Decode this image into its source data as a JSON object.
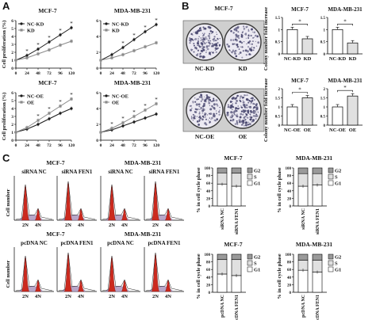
{
  "panels": {
    "A": "A",
    "B": "B",
    "C": "C"
  },
  "colors": {
    "line_dark": "#1a1a1a",
    "line_light": "#8a8a8a",
    "bar_white": "#ffffff",
    "bar_light": "#e0e0e0",
    "bar_dark": "#9a9a9a",
    "peak_red": "#cc2a1e",
    "peak_lilac": "#b8a6c8",
    "dish": "#4a4870"
  },
  "growth": {
    "ylabel": "Cell proliferation (%)",
    "x": [
      0,
      24,
      48,
      72,
      96,
      120
    ],
    "charts": [
      {
        "title": "MCF-7",
        "legend": [
          "NC-KD",
          "KD"
        ],
        "series": [
          [
            1,
            1.6,
            2.4,
            3.3,
            4.2,
            5.1
          ],
          [
            1,
            1.3,
            1.8,
            2.3,
            2.9,
            3.4
          ]
        ],
        "ylim": [
          0,
          6
        ],
        "yticks": [
          0,
          1,
          2,
          3,
          4,
          5,
          6
        ],
        "sig": [
          1,
          2,
          3,
          4,
          5
        ]
      },
      {
        "title": "MDA-MB-231",
        "legend": [
          "NC-KD",
          "KD"
        ],
        "series": [
          [
            1,
            1.7,
            2.6,
            3.6,
            4.6,
            5.5
          ],
          [
            1,
            1.3,
            1.7,
            2.2,
            2.7,
            3.2
          ]
        ],
        "ylim": [
          0,
          6
        ],
        "yticks": [
          0,
          2,
          4,
          6
        ],
        "sig": [
          2,
          3,
          4,
          5
        ]
      },
      {
        "title": "MCF-7",
        "legend": [
          "NC-OE",
          "OE"
        ],
        "series": [
          [
            1,
            1.4,
            2.0,
            2.7,
            3.4,
            4.0
          ],
          [
            1,
            1.6,
            2.5,
            3.4,
            4.3,
            5.2
          ]
        ],
        "ylim": [
          0,
          6
        ],
        "yticks": [
          0,
          1,
          2,
          3,
          4,
          5,
          6
        ],
        "sig": [
          2,
          3,
          4,
          5
        ]
      },
      {
        "title": "MDA-MB-231",
        "legend": [
          "NC-OE",
          "OE"
        ],
        "series": [
          [
            1,
            1.3,
            1.8,
            2.3,
            2.8,
            3.3
          ],
          [
            1,
            1.5,
            2.2,
            3.0,
            3.8,
            4.6
          ]
        ],
        "ylim": [
          0,
          6
        ],
        "yticks": [
          0,
          2,
          4,
          6
        ],
        "sig": [
          1,
          2,
          3,
          4,
          5
        ]
      }
    ]
  },
  "colony": {
    "ylabel": "Colony number fold increase",
    "rows": [
      {
        "dish_title": "MCF-7",
        "dish_labels": [
          "NC-KD",
          "KD"
        ],
        "charts": [
          {
            "title": "MCF-7",
            "categories": [
              "NC-KD",
              "KD"
            ],
            "values": [
              1.0,
              0.62
            ],
            "ylim": [
              0,
              1.5
            ],
            "yticks": [
              0,
              0.5,
              1,
              1.5
            ],
            "sig": "*"
          },
          {
            "title": "MDA-MB-231",
            "categories": [
              "NC-KD",
              "KD"
            ],
            "values": [
              1.0,
              0.45
            ],
            "ylim": [
              0,
              1.5
            ],
            "yticks": [
              0,
              0.5,
              1,
              1.5
            ],
            "sig": "*"
          }
        ]
      },
      {
        "dish_title": "",
        "dish_labels": [
          "NC-OE",
          "OE"
        ],
        "charts": [
          {
            "title": "MCF-7",
            "categories": [
              "NC-OE",
              "OE"
            ],
            "values": [
              1.0,
              1.5
            ],
            "ylim": [
              0,
              2
            ],
            "yticks": [
              0,
              0.5,
              1,
              1.5,
              2
            ],
            "sig": "*"
          },
          {
            "title": "MDA-MB-231",
            "categories": [
              "NC-OE",
              "OE"
            ],
            "values": [
              1.0,
              1.6
            ],
            "ylim": [
              0,
              2
            ],
            "yticks": [
              0,
              0.5,
              1,
              1.5,
              2
            ],
            "sig": "*"
          }
        ]
      }
    ]
  },
  "histograms": {
    "ylabel": "Cell number",
    "xticks": [
      "2N",
      "4N"
    ],
    "rows": [
      {
        "titles": [
          "MCF-7",
          "MDA-MB-231"
        ],
        "labels": [
          "siRNA NC",
          "siRNA FEN1",
          "siRNA NC",
          "siRNA FEN1"
        ]
      },
      {
        "titles": [
          "MCF-7",
          "MDA-MB-231"
        ],
        "labels": [
          "pcDNA NC",
          "pcDNA FEN1",
          "pcDNA NC",
          "pcDNA FEN1"
        ]
      }
    ]
  },
  "cellcycle": {
    "ylabel": "% in cell cycle phase",
    "legend": [
      "G2",
      "S",
      "G1"
    ],
    "yticks": [
      0,
      20,
      40,
      60,
      80,
      100
    ],
    "charts": [
      {
        "title": "MCF-7",
        "categories": [
          "siRNA NC",
          "siRNA FEN1"
        ],
        "g1": [
          57,
          52
        ],
        "s": [
          30,
          34
        ],
        "g2": [
          13,
          14
        ]
      },
      {
        "title": "MDA-MB-231",
        "categories": [
          "siRNA NC",
          "siRNA FEN1"
        ],
        "g1": [
          52,
          55
        ],
        "s": [
          33,
          30
        ],
        "g2": [
          15,
          15
        ]
      },
      {
        "title": "MCF-7",
        "categories": [
          "pcDNA NC",
          "pcDNA FEN1"
        ],
        "g1": [
          48,
          44
        ],
        "s": [
          38,
          42
        ],
        "g2": [
          14,
          14
        ]
      },
      {
        "title": "MDA-MB-231",
        "categories": [
          "pcDNA NC",
          "pcDNA FEN1"
        ],
        "g1": [
          58,
          53
        ],
        "s": [
          26,
          31
        ],
        "g2": [
          16,
          16
        ]
      }
    ]
  }
}
